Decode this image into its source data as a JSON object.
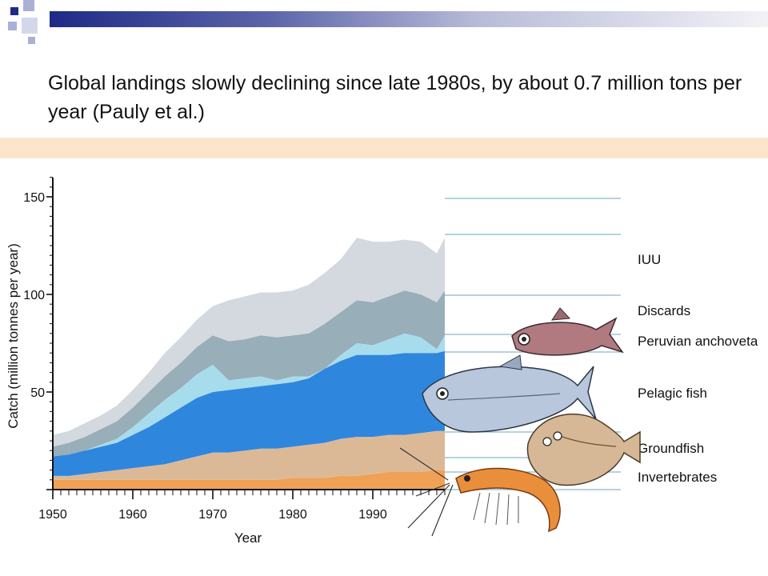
{
  "slide": {
    "title": "Global landings slowly declining since late 1980s, by about 0.7 million tons per year (Pauly et al.)"
  },
  "colors": {
    "iuu": "#d4d8df",
    "discards": "#98aeb9",
    "peruvian_anchoveta": "#a7dced",
    "pelagic_fish": "#2f86dd",
    "pelagic_fish_light": "#79c4f2",
    "groundfish": "#dcb996",
    "invertebrates": "#f0a156",
    "invertebrates_dark": "#ea8238",
    "guide_lines": "#8cb7cc",
    "band": "#fbe6cc"
  },
  "icons": [
    "fish-anchoveta-icon",
    "tuna-pelagic-icon",
    "flatfish-groundfish-icon",
    "shrimp-invertebrate-icon"
  ],
  "chart_data": {
    "type": "area",
    "stacked": true,
    "xlabel": "Year",
    "ylabel": "Catch (million tonnes per year)",
    "xlim": [
      1950,
      1999
    ],
    "ylim": [
      0,
      150
    ],
    "xticks": [
      1950,
      1960,
      1970,
      1980,
      1990
    ],
    "yticks": [
      50,
      100,
      150
    ],
    "x": [
      1950,
      1952,
      1954,
      1956,
      1958,
      1960,
      1962,
      1964,
      1966,
      1968,
      1970,
      1972,
      1974,
      1976,
      1978,
      1980,
      1982,
      1984,
      1986,
      1988,
      1990,
      1992,
      1994,
      1996,
      1998,
      1999
    ],
    "series": [
      {
        "name": "Invertebrates",
        "color": "#f0a156",
        "values": [
          5,
          5,
          5,
          5,
          5,
          5,
          5,
          5,
          5,
          5,
          5,
          5,
          5,
          5,
          5,
          6,
          6,
          6,
          7,
          7,
          8,
          9,
          9,
          9,
          10,
          10
        ]
      },
      {
        "name": "Groundfish",
        "color": "#dcb996",
        "values": [
          2,
          2,
          3,
          4,
          5,
          6,
          7,
          8,
          10,
          12,
          14,
          14,
          15,
          16,
          16,
          16,
          17,
          18,
          19,
          20,
          19,
          19,
          19,
          20,
          20,
          20
        ]
      },
      {
        "name": "Pelagic fish",
        "color": "#2f86dd",
        "values": [
          10,
          11,
          12,
          13,
          14,
          17,
          20,
          24,
          27,
          30,
          31,
          32,
          32,
          32,
          33,
          33,
          34,
          38,
          40,
          42,
          42,
          41,
          42,
          41,
          40,
          41
        ]
      },
      {
        "name": "Peruvian anchoveta",
        "color": "#a7dced",
        "values": [
          0,
          0,
          0,
          1,
          2,
          4,
          7,
          9,
          10,
          12,
          14,
          5,
          5,
          5,
          2,
          3,
          1,
          0,
          3,
          6,
          5,
          8,
          10,
          8,
          2,
          8
        ]
      },
      {
        "name": "Discards",
        "color": "#98aeb9",
        "values": [
          5,
          6,
          7,
          8,
          9,
          10,
          11,
          12,
          13,
          14,
          15,
          20,
          20,
          21,
          22,
          21,
          22,
          23,
          22,
          22,
          22,
          22,
          22,
          22,
          24,
          23
        ]
      },
      {
        "name": "IUU",
        "color": "#d4d8df",
        "values": [
          6,
          6,
          7,
          7,
          8,
          9,
          10,
          12,
          13,
          14,
          15,
          21,
          22,
          22,
          23,
          23,
          25,
          26,
          27,
          32,
          31,
          28,
          26,
          27,
          25,
          27
        ]
      }
    ],
    "legend": [
      "IUU",
      "Discards",
      "Peruvian anchoveta",
      "Pelagic fish",
      "Groundfish",
      "Invertebrates"
    ],
    "legend_placement": "right",
    "grid": false
  }
}
